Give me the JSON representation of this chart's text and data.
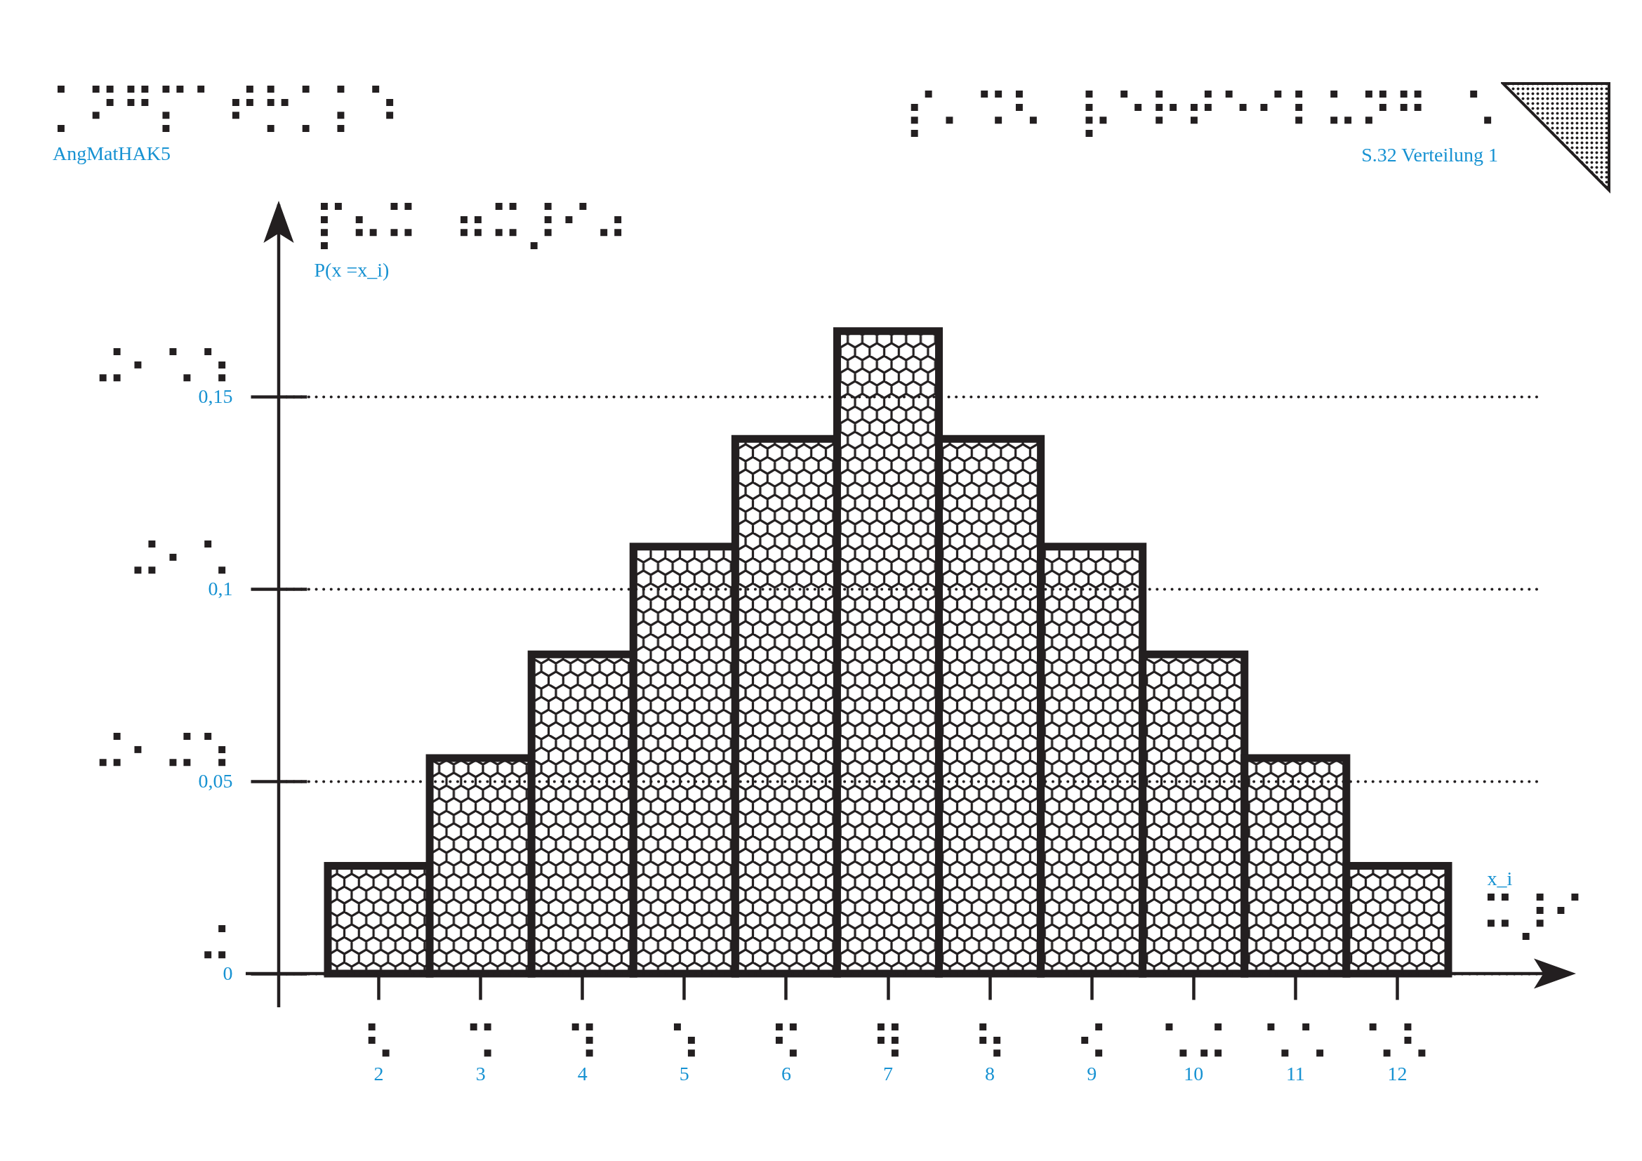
{
  "chart_data": {
    "type": "bar",
    "title": "⡎⠄⠩⠣ ⡧⠑⠗⠞⠑⠊⠇⠥⠝⠛ ⠡",
    "subtitle": "S.32 Verteilung 1",
    "xlabel": "x_i",
    "ylabel": "P(x =x_i)",
    "annotations": [
      "⡁⠝⠛⡍⠁⠞⡓⡁⡅⠱",
      "AngMatHAK5",
      "⡏⠦⠭ ⠶⠭⡸⠊⠴",
      "⠭⡸⠊",
      "⠬",
      "⠬⠂⠬⠱",
      "⠬⠂⠡",
      "⠬⠂⠡⠱",
      {
        "text": "⠣",
        "x": "2"
      },
      {
        "text": "⠩",
        "x": "3"
      },
      {
        "text": "⠹",
        "x": "4"
      },
      {
        "text": "⠱",
        "x": "5"
      },
      {
        "text": "⠫",
        "x": "6"
      },
      {
        "text": "⠻",
        "x": "7"
      },
      {
        "text": "⠳",
        "x": "8"
      },
      {
        "text": "⠪",
        "x": "9"
      },
      {
        "text": "⠡⠬",
        "x": "10"
      },
      {
        "text": "⠡⠡",
        "x": "11"
      },
      {
        "text": "⠡⠣",
        "x": "12"
      }
    ],
    "categories": [
      "2",
      "3",
      "4",
      "5",
      "6",
      "7",
      "8",
      "9",
      "10",
      "11",
      "12"
    ],
    "values": [
      0.028,
      0.056,
      0.083,
      0.111,
      0.139,
      0.167,
      0.139,
      0.111,
      0.083,
      0.056,
      0.028
    ],
    "color": "#231f20",
    "ylim": [
      0,
      0.2
    ],
    "yticks": [
      {
        "value": 0,
        "label": "0"
      },
      {
        "value": 0.05,
        "label": "0,05"
      },
      {
        "value": 0.1,
        "label": "0,1"
      },
      {
        "value": 0.15,
        "label": "0,15"
      }
    ],
    "grid": "y"
  }
}
